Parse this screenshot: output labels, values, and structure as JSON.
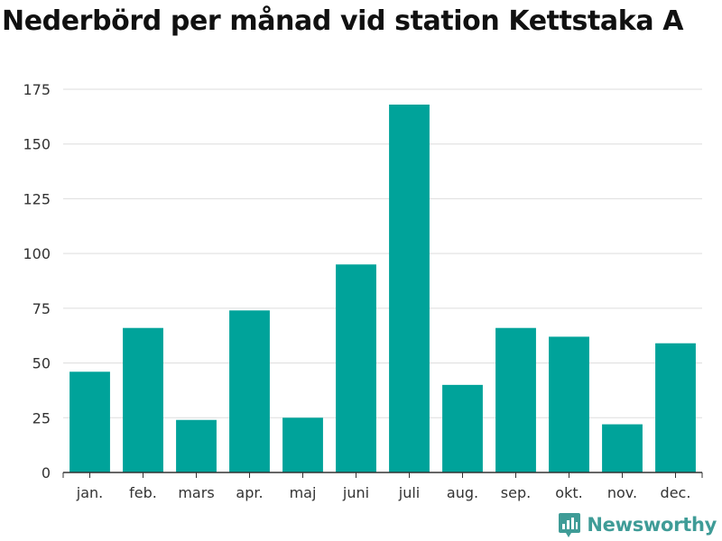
{
  "chart_data": {
    "type": "bar",
    "title": "Nederbörd per månad vid station Kettstaka A",
    "xlabel": "",
    "ylabel": "",
    "categories": [
      "jan.",
      "feb.",
      "mars",
      "apr.",
      "maj",
      "juni",
      "juli",
      "aug.",
      "sep.",
      "okt.",
      "nov.",
      "dec."
    ],
    "values": [
      46,
      66,
      24,
      74,
      25,
      95,
      168,
      40,
      66,
      62,
      22,
      59
    ],
    "ylim": [
      0,
      175
    ],
    "yticks": [
      0,
      25,
      50,
      75,
      100,
      125,
      150,
      175
    ],
    "grid": true,
    "legend": "none",
    "bar_color": "#00a39a"
  },
  "brand": {
    "name": "Newsworthy",
    "icon": "newsworthy-logo-icon",
    "color": "#3f9c97"
  }
}
